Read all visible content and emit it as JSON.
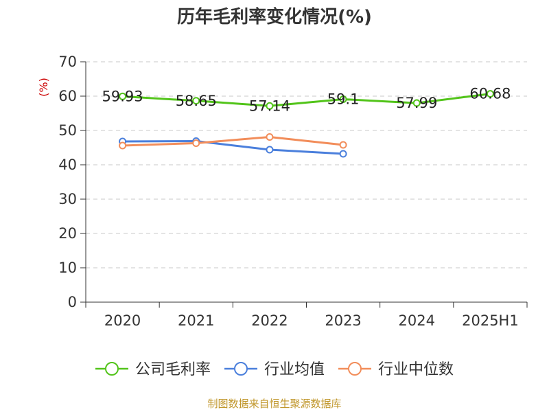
{
  "chart_data": {
    "type": "line",
    "title": "历年毛利率变化情况(%)",
    "ylabel": "(%)",
    "xlabel": "",
    "categories": [
      "2020",
      "2021",
      "2022",
      "2023",
      "2024",
      "2025H1"
    ],
    "ylim": [
      0,
      70
    ],
    "yticks": [
      0,
      10,
      20,
      30,
      40,
      50,
      60,
      70
    ],
    "grid": true,
    "legend_position": "bottom",
    "series": [
      {
        "name": "公司毛利率",
        "color": "#52c41a",
        "values": [
          59.93,
          58.65,
          57.14,
          59.1,
          57.99,
          60.68
        ],
        "show_labels": true
      },
      {
        "name": "行业均值",
        "color": "#4a7fdc",
        "values": [
          46.8,
          46.9,
          44.4,
          43.2,
          null,
          null
        ],
        "show_labels": false
      },
      {
        "name": "行业中位数",
        "color": "#f28d5a",
        "values": [
          45.6,
          46.3,
          48.1,
          45.8,
          null,
          null
        ],
        "show_labels": false
      }
    ],
    "source": "制图数据来自恒生聚源数据库"
  }
}
